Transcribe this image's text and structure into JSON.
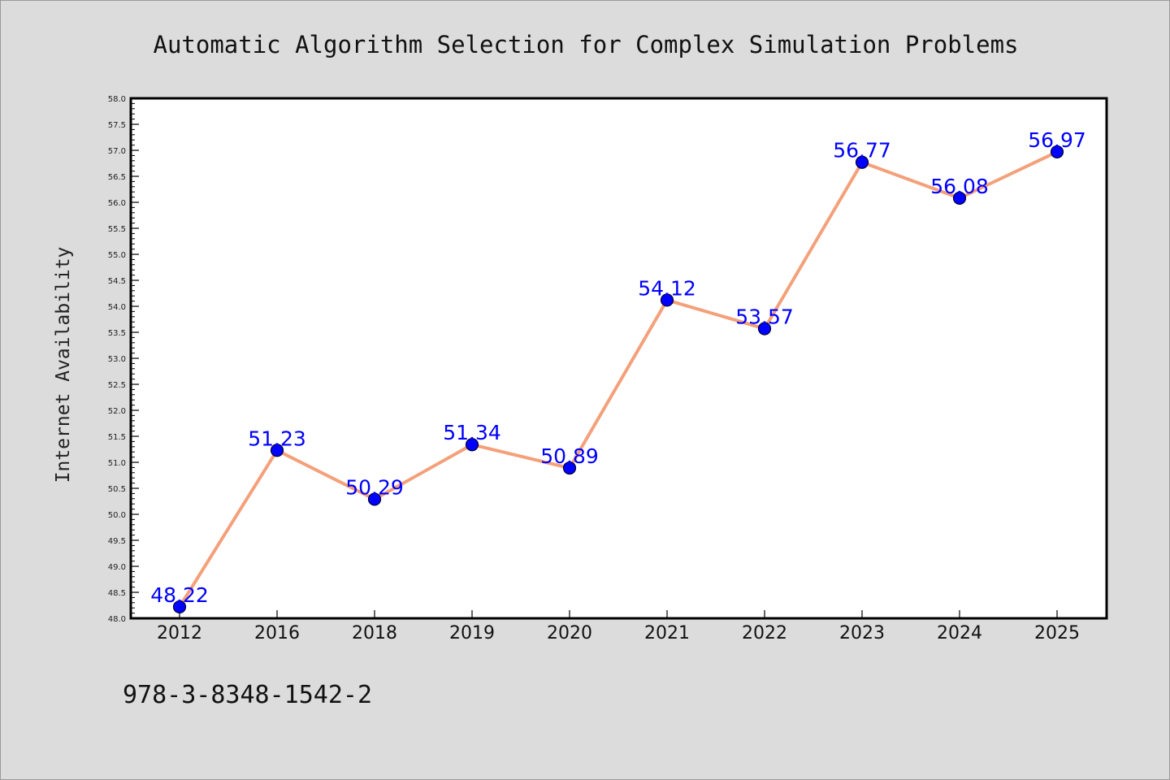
{
  "chart_data": {
    "type": "line",
    "title": "Automatic Algorithm Selection for Complex Simulation Problems",
    "xlabel": "",
    "ylabel": "Internet Availability",
    "categories": [
      "2012",
      "2016",
      "2018",
      "2019",
      "2020",
      "2021",
      "2022",
      "2023",
      "2024",
      "2025"
    ],
    "series": [
      {
        "values": [
          48.22,
          51.23,
          50.29,
          51.34,
          50.89,
          54.12,
          53.57,
          56.77,
          56.08,
          56.97
        ],
        "line_color": "#f4a07a",
        "marker_color": "#0000ff"
      }
    ],
    "data_labels": [
      "48.22",
      "51.23",
      "50.29",
      "51.34",
      "50.89",
      "54.12",
      "53.57",
      "56.77",
      "56.08",
      "56.97"
    ],
    "ylim": [
      48.0,
      58.0
    ],
    "y_ticks": [
      "48.0",
      "48.5",
      "49.0",
      "49.5",
      "50.0",
      "50.5",
      "51.0",
      "51.5",
      "52.0",
      "52.5",
      "53.0",
      "53.5",
      "54.0",
      "54.5",
      "55.0",
      "55.5",
      "56.0",
      "56.5",
      "57.0",
      "57.5",
      "58.0"
    ],
    "grid": false,
    "legend": "none"
  },
  "footer": {
    "isbn": "978-3-8348-1542-2"
  }
}
